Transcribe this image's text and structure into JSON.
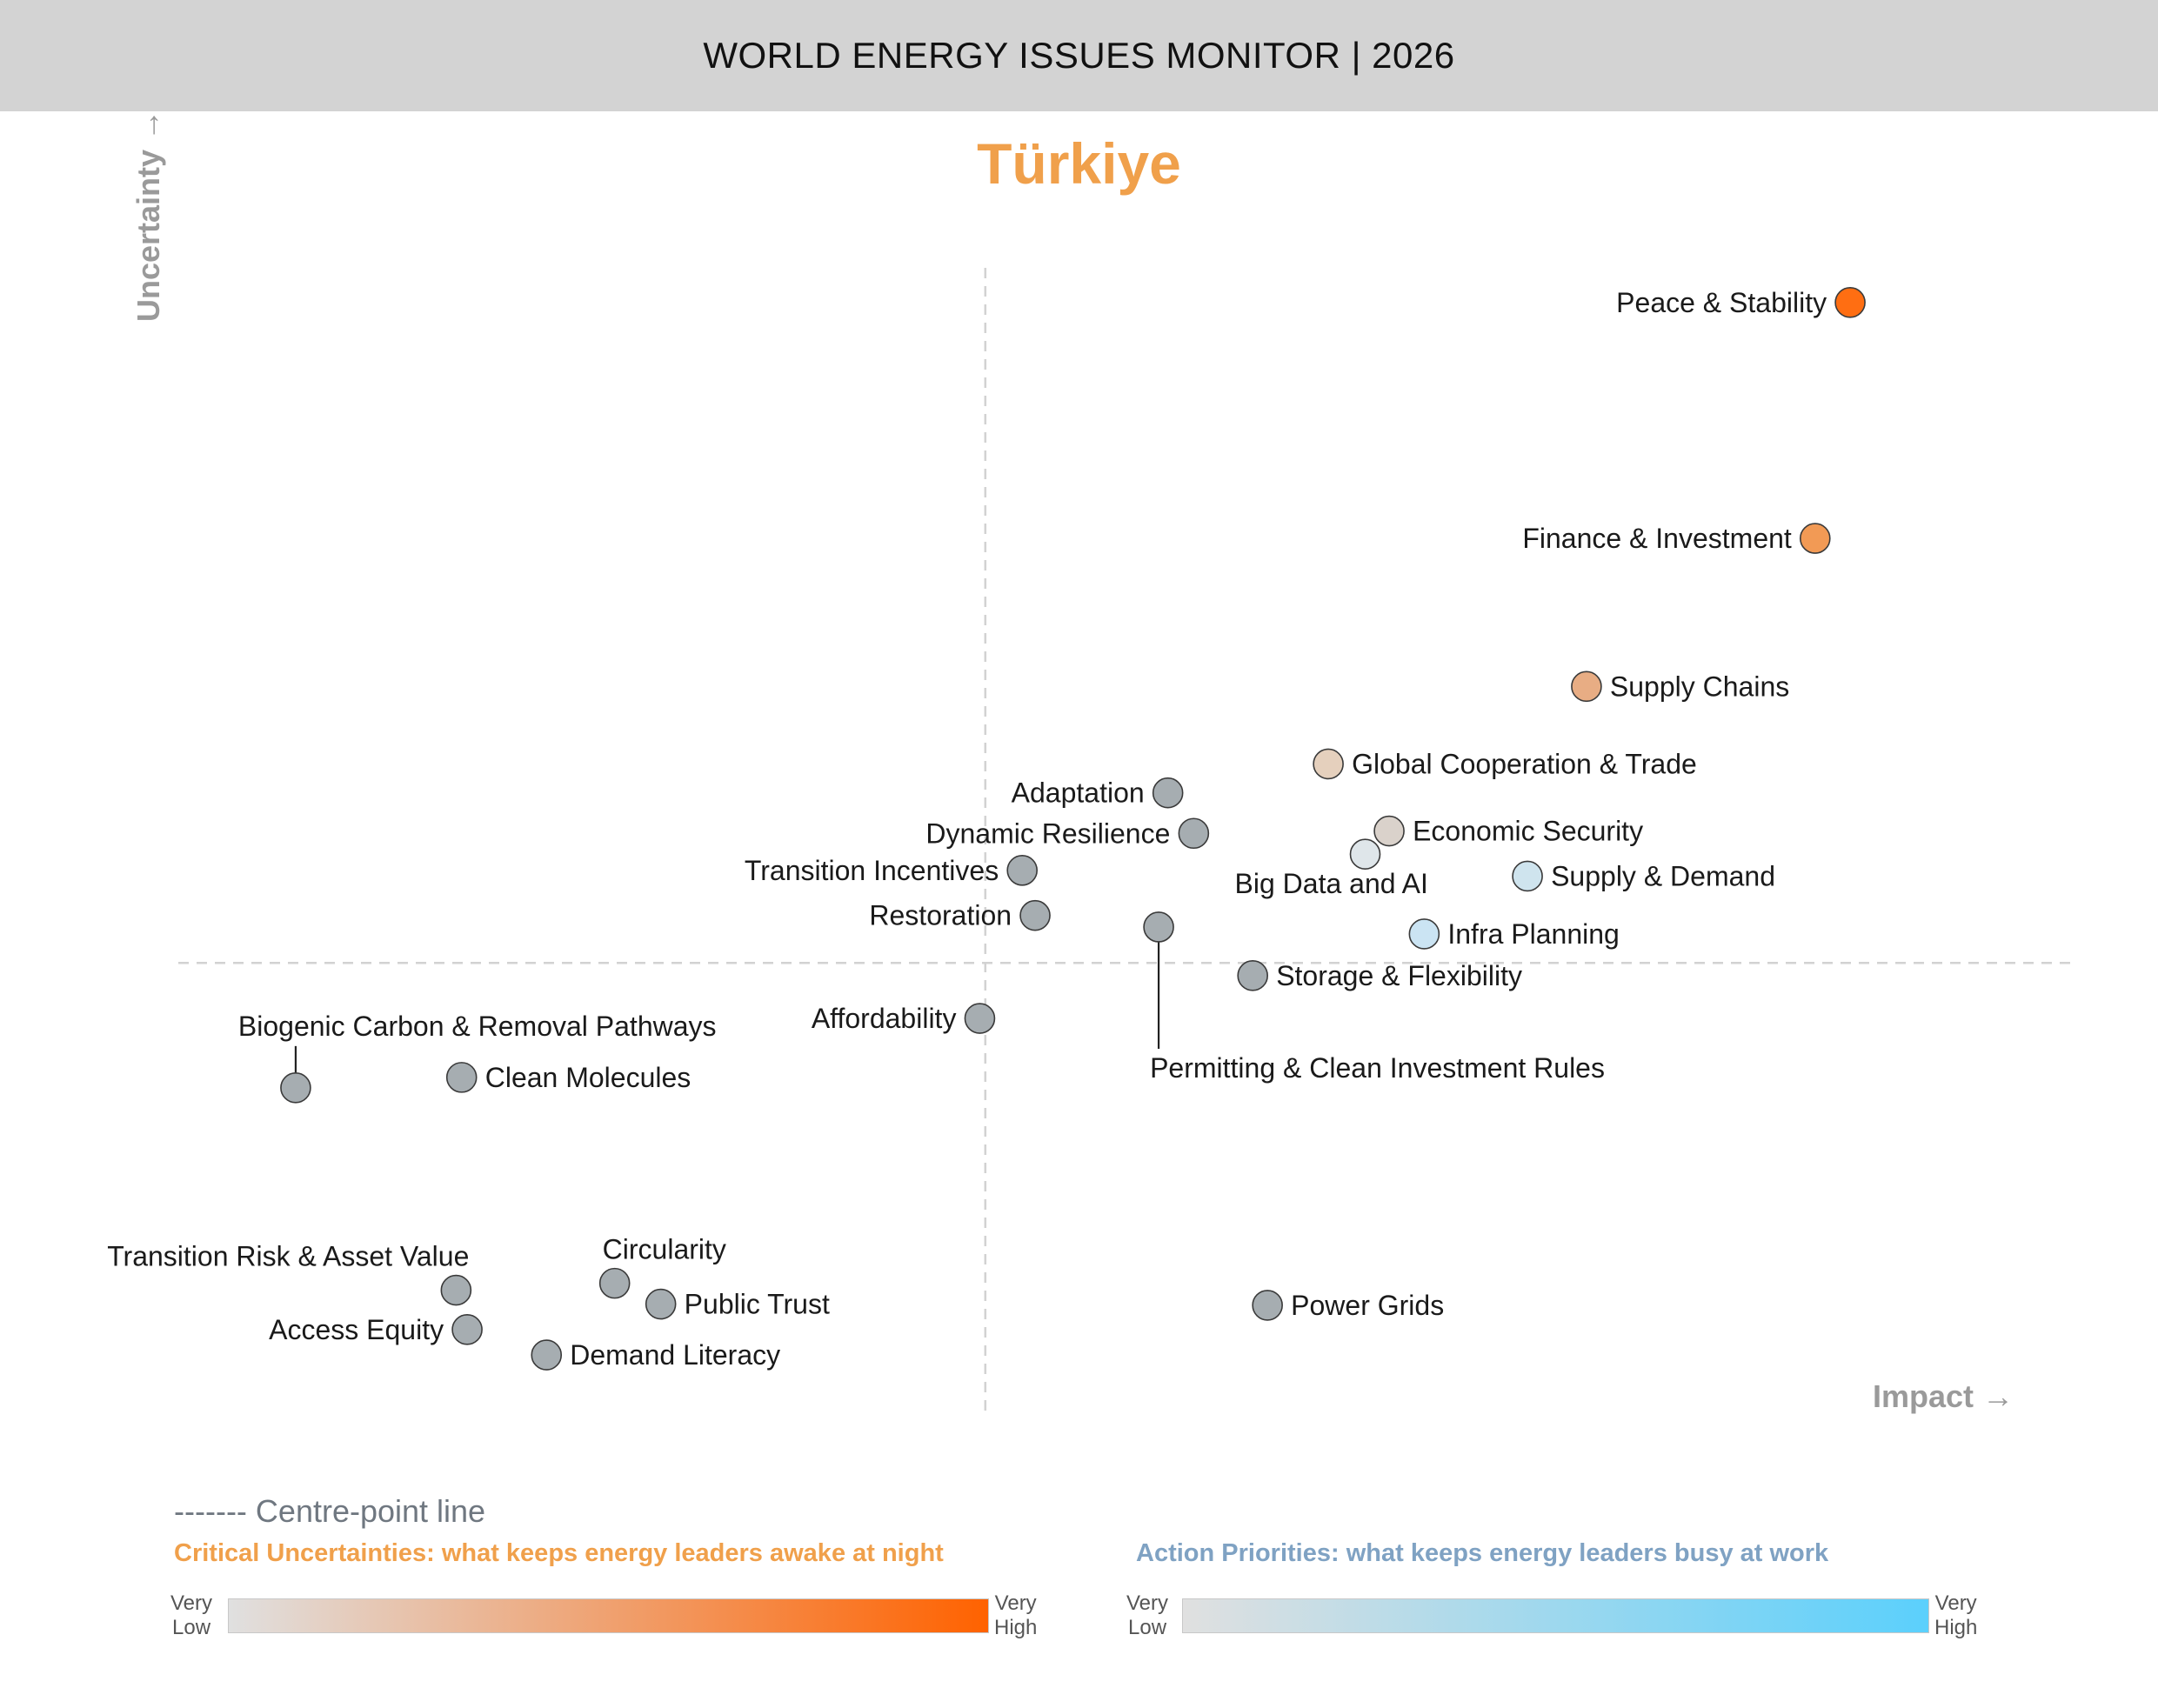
{
  "header": {
    "title": "WORLD ENERGY ISSUES MONITOR | 2026"
  },
  "country": "Türkiye",
  "colors": {
    "header_bg": "#d3d3d3",
    "country": "#f0a04b",
    "uncertainty_title": "#f0a04b",
    "priority_title": "#7fa2c3",
    "uncertainty_scale": [
      "#e0e0e0",
      "#ff6200"
    ],
    "priority_scale": [
      "#e0e0e0",
      "#5bd0fc"
    ],
    "neutral_bubble": "#a6adb1"
  },
  "chart_data": {
    "type": "scatter",
    "title": "Türkiye",
    "xlabel": "Impact",
    "ylabel": "Uncertainty",
    "xlim": [
      0,
      100
    ],
    "ylim": [
      0,
      100
    ],
    "centre_x": 44.0,
    "centre_y": 36.3,
    "points": [
      {
        "label": "Peace & Stability",
        "x": 90.9,
        "y": 93.4,
        "color": "#ff6e12",
        "label_side": "left"
      },
      {
        "label": "Finance & Investment",
        "x": 89.0,
        "y": 73.0,
        "color": "#f29a55",
        "label_side": "left"
      },
      {
        "label": "Supply Chains",
        "x": 76.6,
        "y": 60.2,
        "color": "#e8ad84",
        "label_side": "right"
      },
      {
        "label": "Global Cooperation & Trade",
        "x": 62.6,
        "y": 53.5,
        "color": "#e5d0bd",
        "label_side": "right"
      },
      {
        "label": "Economic Security",
        "x": 65.9,
        "y": 47.7,
        "color": "#dad2cb",
        "label_side": "right"
      },
      {
        "label": "Big Data and AI",
        "x": 64.6,
        "y": 45.7,
        "color": "#dfe6ea",
        "label_side": "below"
      },
      {
        "label": "Supply & Demand",
        "x": 73.4,
        "y": 43.8,
        "color": "#cfe4ee",
        "label_side": "right"
      },
      {
        "label": "Infra Planning",
        "x": 67.8,
        "y": 38.8,
        "color": "#cbe4f3",
        "label_side": "right"
      },
      {
        "label": "Adaptation",
        "x": 53.9,
        "y": 51.0,
        "color": "#a6adb1",
        "label_side": "left"
      },
      {
        "label": "Dynamic Resilience",
        "x": 55.3,
        "y": 47.5,
        "color": "#a6adb1",
        "label_side": "left"
      },
      {
        "label": "Transition Incentives",
        "x": 46.0,
        "y": 44.3,
        "color": "#a6adb1",
        "label_side": "left"
      },
      {
        "label": "Restoration",
        "x": 46.7,
        "y": 40.4,
        "color": "#a6adb1",
        "label_side": "left"
      },
      {
        "label": "Permitting & Clean Investment Rules",
        "x": 53.4,
        "y": 39.4,
        "color": "#a6adb1",
        "label_side": "leader-below"
      },
      {
        "label": "Storage & Flexibility",
        "x": 58.5,
        "y": 35.2,
        "color": "#a6adb1",
        "label_side": "right"
      },
      {
        "label": "Affordability",
        "x": 43.7,
        "y": 31.5,
        "color": "#a6adb1",
        "label_side": "left"
      },
      {
        "label": "Biogenic Carbon & Removal Pathways",
        "x": 6.6,
        "y": 25.5,
        "color": "#a6adb1",
        "label_side": "leader-above"
      },
      {
        "label": "Clean Molecules",
        "x": 15.6,
        "y": 26.4,
        "color": "#a6adb1",
        "label_side": "right"
      },
      {
        "label": "Transition Risk & Asset Value",
        "x": 15.3,
        "y": 8.0,
        "color": "#a6adb1",
        "label_side": "above-left"
      },
      {
        "label": "Access Equity",
        "x": 15.9,
        "y": 4.6,
        "color": "#a6adb1",
        "label_side": "left"
      },
      {
        "label": "Circularity",
        "x": 23.9,
        "y": 8.6,
        "color": "#a6adb1",
        "label_side": "above"
      },
      {
        "label": "Public Trust",
        "x": 26.4,
        "y": 6.8,
        "color": "#a6adb1",
        "label_side": "right"
      },
      {
        "label": "Demand Literacy",
        "x": 20.2,
        "y": 2.4,
        "color": "#a6adb1",
        "label_side": "right"
      },
      {
        "label": "Power Grids",
        "x": 59.3,
        "y": 6.7,
        "color": "#a6adb1",
        "label_side": "right"
      }
    ]
  },
  "legend": {
    "centre_line": "------- Centre-point line",
    "uncertainties_title": "Critical Uncertainties: what keeps energy leaders awake at night",
    "priorities_title": "Action Priorities: what keeps energy leaders busy at work",
    "very_low": [
      "Very",
      "Low"
    ],
    "very_high": [
      "Very",
      "High"
    ]
  }
}
